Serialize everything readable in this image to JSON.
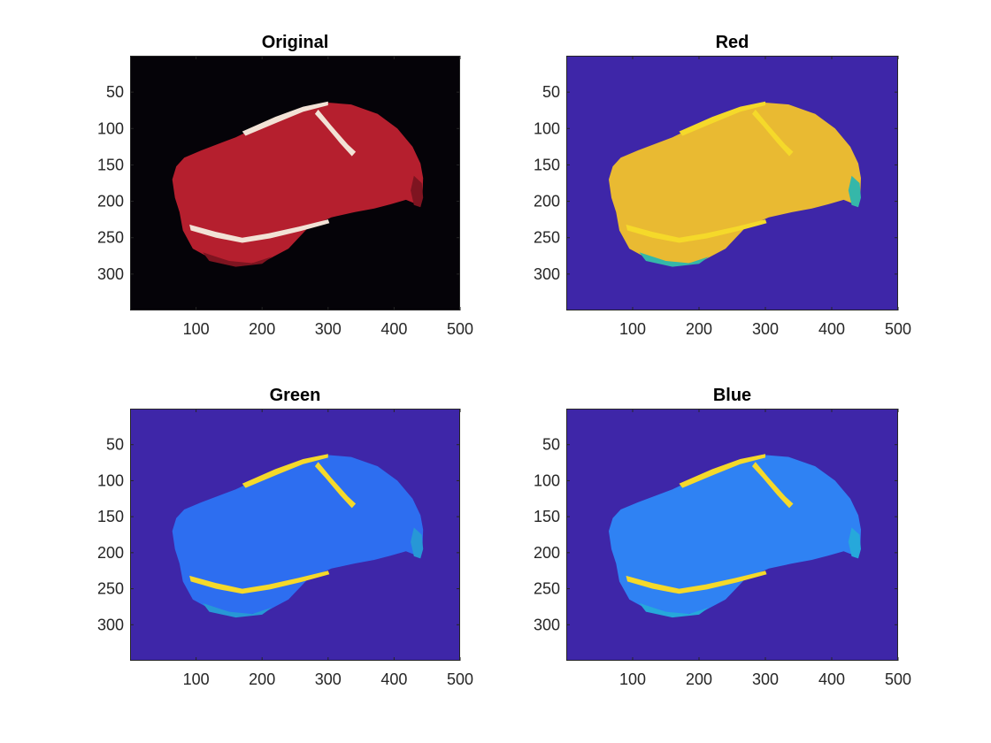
{
  "chart_data": [
    {
      "type": "image",
      "title": "Original",
      "xlabel": "",
      "ylabel": "",
      "xlim": [
        0,
        500
      ],
      "ylim": [
        0,
        350
      ],
      "xticks": [
        100,
        200,
        300,
        400,
        500
      ],
      "yticks": [
        50,
        100,
        150,
        200,
        250,
        300
      ],
      "xtick_labels": [
        "100",
        "200",
        "300",
        "400",
        "500"
      ],
      "ytick_labels": [
        "50",
        "100",
        "150",
        "200",
        "250",
        "300"
      ],
      "grid": false,
      "colors": {
        "background": "#050308",
        "body": "#b51f2e",
        "fat": "#f2e2d6",
        "shade": "#7e1420"
      }
    },
    {
      "type": "heatmap",
      "title": "Red",
      "xlabel": "",
      "ylabel": "",
      "xlim": [
        0,
        500
      ],
      "ylim": [
        0,
        350
      ],
      "xticks": [
        100,
        200,
        300,
        400,
        500
      ],
      "yticks": [
        50,
        100,
        150,
        200,
        250,
        300
      ],
      "xtick_labels": [
        "100",
        "200",
        "300",
        "400",
        "500"
      ],
      "ytick_labels": [
        "50",
        "100",
        "150",
        "200",
        "250",
        "300"
      ],
      "grid": false,
      "colors": {
        "background": "#3e26a8",
        "body": "#e9ba32",
        "fat": "#f5d92a",
        "shade": "#35b7a9"
      }
    },
    {
      "type": "heatmap",
      "title": "Green",
      "xlabel": "",
      "ylabel": "",
      "xlim": [
        0,
        500
      ],
      "ylim": [
        0,
        350
      ],
      "xticks": [
        100,
        200,
        300,
        400,
        500
      ],
      "yticks": [
        50,
        100,
        150,
        200,
        250,
        300
      ],
      "xtick_labels": [
        "100",
        "200",
        "300",
        "400",
        "500"
      ],
      "ytick_labels": [
        "50",
        "100",
        "150",
        "200",
        "250",
        "300"
      ],
      "grid": false,
      "colors": {
        "background": "#3e26a8",
        "body": "#2d6ef0",
        "fat": "#f5d92a",
        "shade": "#2797d6"
      }
    },
    {
      "type": "heatmap",
      "title": "Blue",
      "xlabel": "",
      "ylabel": "",
      "xlim": [
        0,
        500
      ],
      "ylim": [
        0,
        350
      ],
      "xticks": [
        100,
        200,
        300,
        400,
        500
      ],
      "yticks": [
        50,
        100,
        150,
        200,
        250,
        300
      ],
      "xtick_labels": [
        "100",
        "200",
        "300",
        "400",
        "500"
      ],
      "ytick_labels": [
        "50",
        "100",
        "150",
        "200",
        "250",
        "300"
      ],
      "grid": false,
      "colors": {
        "background": "#3e26a8",
        "body": "#2f82f3",
        "fat": "#f5d92a",
        "shade": "#26a8db"
      }
    }
  ]
}
